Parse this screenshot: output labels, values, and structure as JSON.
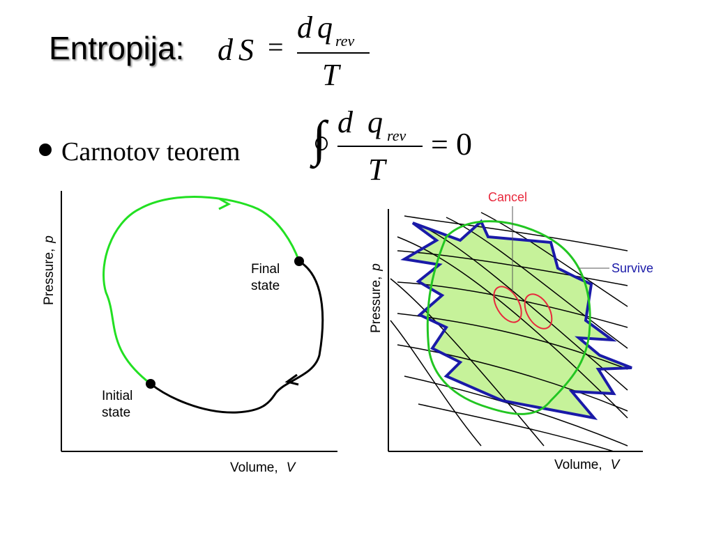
{
  "title": "Entropija:",
  "formula1": {
    "lhs_d": "d",
    "lhs_S": "S",
    "eq": "=",
    "num_d": "d",
    "num_q": "q",
    "num_sub": "rev",
    "den": "T"
  },
  "bullet": {
    "text": "Carnotov teorem"
  },
  "formula2": {
    "integral": "∫",
    "num_d": "d",
    "num_q": "q",
    "num_sub": "rev",
    "den": "T",
    "eq": "=",
    "rhs": "0"
  },
  "left_diagram": {
    "ylabel": "Pressure,",
    "ylabel_var": "p",
    "xlabel": "Volume,",
    "xlabel_var": "V",
    "final_state": [
      "Final",
      "state"
    ],
    "initial_state": [
      "Initial",
      "state"
    ],
    "colors": {
      "forward_path": "#22e022",
      "reverse_path": "#000000"
    }
  },
  "right_diagram": {
    "ylabel": "Pressure,",
    "ylabel_var": "p",
    "xlabel": "Volume,",
    "xlabel_var": "V",
    "cancel_label": "Cancel",
    "survive_label": "Survive",
    "colors": {
      "cancel": "#e8283c",
      "survive": "#1a1aa8",
      "fill": "#c6f29a",
      "loop": "#22c622"
    }
  }
}
